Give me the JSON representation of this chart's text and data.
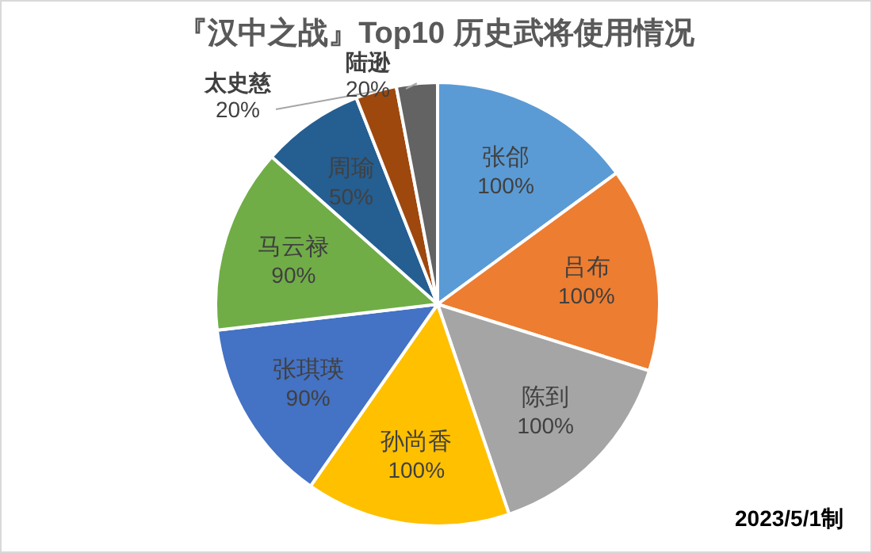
{
  "chart_data": {
    "type": "pie",
    "title": "『汉中之战』Top10 历史武将使用情况",
    "categories": [
      "张郃",
      "吕布",
      "陈到",
      "孙尚香",
      "张琪瑛",
      "马云禄",
      "周瑜",
      "太史慈",
      "陆逊"
    ],
    "values": [
      100,
      100,
      100,
      100,
      90,
      90,
      50,
      20,
      20
    ],
    "value_labels": [
      "100%",
      "100%",
      "100%",
      "100%",
      "90%",
      "90%",
      "50%",
      "20%",
      "20%"
    ],
    "colors": [
      "#5b9bd5",
      "#ed7d31",
      "#a5a5a5",
      "#ffc000",
      "#4472c4",
      "#70ad47",
      "#255e91",
      "#9e480e",
      "#636363"
    ],
    "annotations": [
      "2023/5/1制"
    ]
  }
}
